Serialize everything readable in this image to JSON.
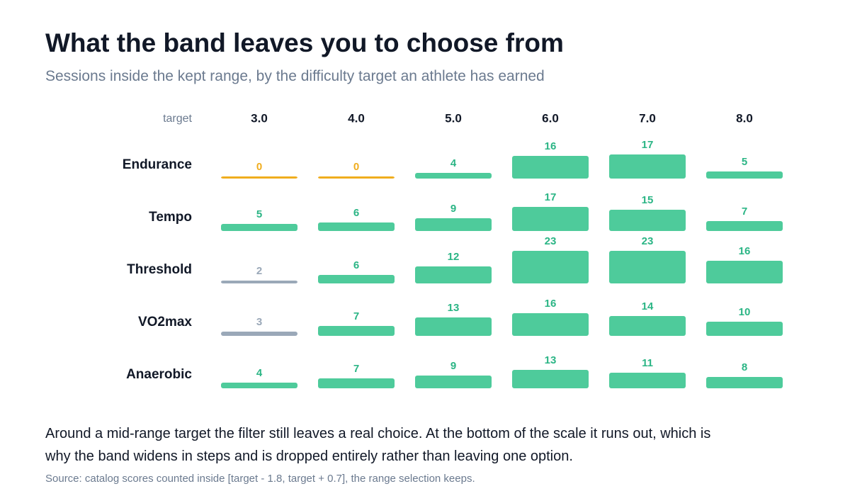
{
  "chart_data": {
    "type": "bar",
    "title": "What the band leaves you to choose from",
    "subtitle": "Sessions inside the kept range, by the difficulty target an athlete has earned",
    "x_label": "target",
    "categories": [
      "3.0",
      "4.0",
      "5.0",
      "6.0",
      "7.0",
      "8.0"
    ],
    "series": [
      {
        "name": "Endurance",
        "values": [
          0,
          0,
          4,
          16,
          17,
          5
        ],
        "colors": [
          "#f0ad1e",
          "#f0ad1e",
          "#4ecb9b",
          "#4ecb9b",
          "#4ecb9b",
          "#4ecb9b"
        ]
      },
      {
        "name": "Tempo",
        "values": [
          5,
          6,
          9,
          17,
          15,
          7
        ],
        "colors": [
          "#4ecb9b",
          "#4ecb9b",
          "#4ecb9b",
          "#4ecb9b",
          "#4ecb9b",
          "#4ecb9b"
        ]
      },
      {
        "name": "Threshold",
        "values": [
          2,
          6,
          12,
          23,
          23,
          16
        ],
        "colors": [
          "#9aa8b8",
          "#4ecb9b",
          "#4ecb9b",
          "#4ecb9b",
          "#4ecb9b",
          "#4ecb9b"
        ]
      },
      {
        "name": "VO2max",
        "values": [
          3,
          7,
          13,
          16,
          14,
          10
        ],
        "colors": [
          "#9aa8b8",
          "#4ecb9b",
          "#4ecb9b",
          "#4ecb9b",
          "#4ecb9b",
          "#4ecb9b"
        ]
      },
      {
        "name": "Anaerobic",
        "values": [
          4,
          7,
          9,
          13,
          11,
          8
        ],
        "colors": [
          "#4ecb9b",
          "#4ecb9b",
          "#4ecb9b",
          "#4ecb9b",
          "#4ecb9b",
          "#4ecb9b"
        ]
      }
    ],
    "note": "Around a mid-range target the filter still leaves a real choice. At the bottom of the scale it runs out, which is why the band widens in steps and is dropped entirely rather than leaving one option.",
    "source": "Source: catalog scores counted inside [target - 1.8, target + 0.7], the range selection keeps."
  }
}
